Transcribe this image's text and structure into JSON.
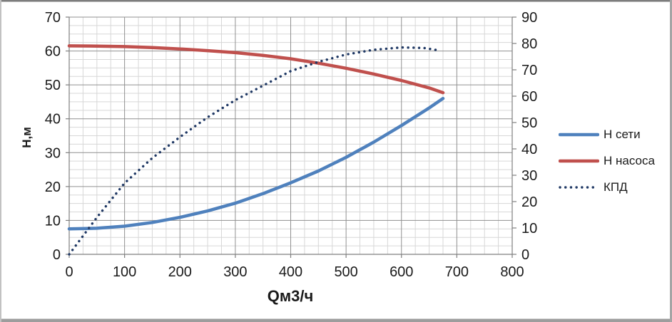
{
  "chart_data": {
    "type": "line",
    "title": "",
    "x_axis": {
      "label": "Qм3/ч",
      "min": 0,
      "max": 800,
      "major": 100,
      "minor": 25,
      "ticks": [
        "0",
        "100",
        "200",
        "300",
        "400",
        "500",
        "600",
        "700",
        "800"
      ]
    },
    "y_left": {
      "label": "Н,м",
      "min": 0,
      "max": 70,
      "major": 10,
      "minor": 2.5,
      "ticks": [
        "0",
        "10",
        "20",
        "30",
        "40",
        "50",
        "60",
        "70"
      ]
    },
    "y_right": {
      "label": "",
      "min": 0,
      "max": 90,
      "major": 10,
      "ticks": [
        "0",
        "10",
        "20",
        "30",
        "40",
        "50",
        "60",
        "70",
        "80",
        "90"
      ]
    },
    "grid": {
      "on": true,
      "minor_color": "#d7d7d7",
      "major_color": "#909090",
      "axis_color": "#7f7f7f",
      "text_color": "#1a1a1a"
    },
    "legend_position": "right",
    "series": [
      {
        "name": "Н сети",
        "axis": "left",
        "style": "solid",
        "color": "#4F81BD",
        "points": [
          [
            0,
            7.5
          ],
          [
            50,
            7.7
          ],
          [
            100,
            8.3
          ],
          [
            150,
            9.4
          ],
          [
            200,
            10.9
          ],
          [
            250,
            12.8
          ],
          [
            300,
            15.1
          ],
          [
            350,
            17.9
          ],
          [
            400,
            21.1
          ],
          [
            450,
            24.6
          ],
          [
            500,
            28.6
          ],
          [
            550,
            33.1
          ],
          [
            600,
            38.0
          ],
          [
            650,
            43.2
          ],
          [
            675,
            46.0
          ]
        ]
      },
      {
        "name": "Н насоса",
        "axis": "left",
        "style": "solid",
        "color": "#C0504D",
        "points": [
          [
            0,
            61.5
          ],
          [
            50,
            61.45
          ],
          [
            100,
            61.3
          ],
          [
            150,
            61.0
          ],
          [
            200,
            60.6
          ],
          [
            250,
            60.1
          ],
          [
            300,
            59.5
          ],
          [
            350,
            58.7
          ],
          [
            400,
            57.7
          ],
          [
            450,
            56.4
          ],
          [
            500,
            54.9
          ],
          [
            550,
            53.2
          ],
          [
            600,
            51.3
          ],
          [
            650,
            49.1
          ],
          [
            675,
            47.7
          ]
        ]
      },
      {
        "name": "КПД",
        "axis": "right",
        "style": "dotted",
        "color": "#1F3864",
        "points": [
          [
            0,
            0
          ],
          [
            25,
            7
          ],
          [
            50,
            14
          ],
          [
            100,
            27
          ],
          [
            150,
            36.5
          ],
          [
            200,
            44.5
          ],
          [
            250,
            52
          ],
          [
            300,
            58.5
          ],
          [
            350,
            64
          ],
          [
            400,
            69.5
          ],
          [
            450,
            73
          ],
          [
            500,
            75.8
          ],
          [
            550,
            77.6
          ],
          [
            600,
            78.5
          ],
          [
            640,
            78.3
          ],
          [
            670,
            77.3
          ]
        ]
      }
    ]
  }
}
